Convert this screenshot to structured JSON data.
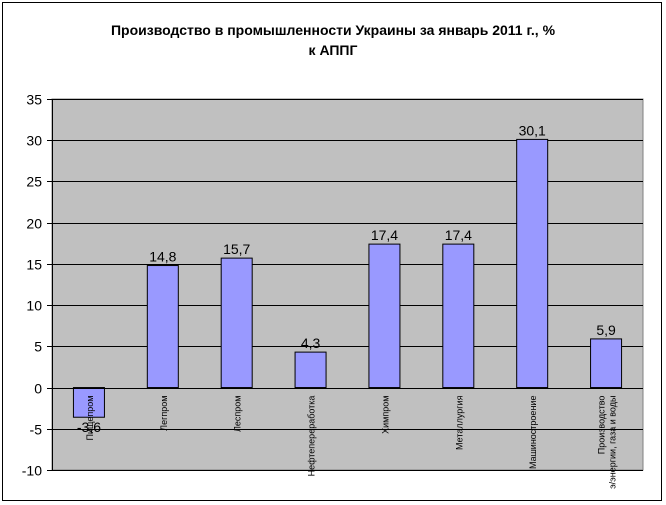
{
  "chart_data": {
    "type": "bar",
    "title_line1": "Производство в промышленности Украины за январь 2011 г., %",
    "title_line2": "к АППГ",
    "categories": [
      "Пищепром",
      "Легпром",
      "Леспром",
      "Нефтепереработка",
      "Химпром",
      "Металлургия",
      "Машиностроение",
      "Производство э/энергии, газа и воды"
    ],
    "values": [
      -3.6,
      14.8,
      15.7,
      4.3,
      17.4,
      17.4,
      30.1,
      5.9
    ],
    "value_labels": [
      "-3,6",
      "14,8",
      "15,7",
      "4,3",
      "17,4",
      "17,4",
      "30,1",
      "5,9"
    ],
    "ylim": [
      -10,
      35
    ],
    "ytick_step": 5,
    "grid": true,
    "legend": "none",
    "colors": {
      "bar_fill": "#9999ff",
      "bar_stroke": "#000000",
      "plot_bg": "#c0c0c0",
      "grid": "#000000"
    }
  }
}
